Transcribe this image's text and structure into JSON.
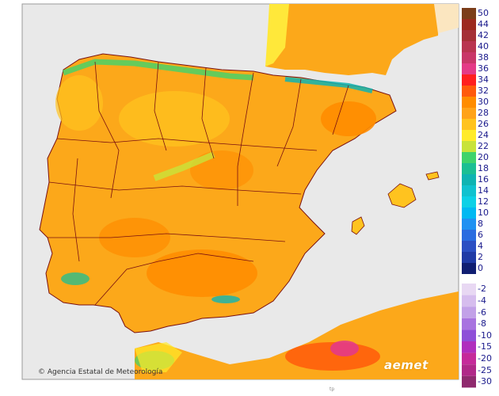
{
  "map": {
    "credit": "Agencia Estatal de Meteorología",
    "logo": "aemet",
    "bottom_mark": "tp",
    "colors": {
      "sea": "#e9e9e9",
      "base": "#fca81a",
      "border": "#7a1010"
    }
  },
  "legend": {
    "positive": [
      {
        "label": "50",
        "color": "#7b3d1a"
      },
      {
        "label": "44",
        "color": "#9c2a1e"
      },
      {
        "label": "42",
        "color": "#a53037"
      },
      {
        "label": "40",
        "color": "#b93550"
      },
      {
        "label": "38",
        "color": "#c93768"
      },
      {
        "label": "36",
        "color": "#e43a87"
      },
      {
        "label": "34",
        "color": "#ff1f1f"
      },
      {
        "label": "32",
        "color": "#ff5a0c"
      },
      {
        "label": "30",
        "color": "#ff8c00"
      },
      {
        "label": "28",
        "color": "#ffa31a"
      },
      {
        "label": "26",
        "color": "#ffc31f"
      },
      {
        "label": "24",
        "color": "#ffeb2b"
      },
      {
        "label": "22",
        "color": "#c8e33a"
      },
      {
        "label": "20",
        "color": "#3fd36b"
      },
      {
        "label": "18",
        "color": "#1bbf93"
      },
      {
        "label": "16",
        "color": "#0fb4b2"
      },
      {
        "label": "14",
        "color": "#10c2cf"
      },
      {
        "label": "12",
        "color": "#0cd1e6"
      },
      {
        "label": "10",
        "color": "#00b9f2"
      },
      {
        "label": "8",
        "color": "#1f91f2"
      },
      {
        "label": "6",
        "color": "#2a6ce0"
      },
      {
        "label": "4",
        "color": "#2b4fc3"
      },
      {
        "label": "2",
        "color": "#1f3aa6"
      },
      {
        "label": "0",
        "color": "#101e72"
      }
    ],
    "negative": [
      {
        "label": "-2",
        "color": "#e8d8f3"
      },
      {
        "label": "-4",
        "color": "#d6bdee"
      },
      {
        "label": "-6",
        "color": "#c2a1e8"
      },
      {
        "label": "-8",
        "color": "#a873e0"
      },
      {
        "label": "-10",
        "color": "#8e4fd8"
      },
      {
        "label": "-15",
        "color": "#b02fbe"
      },
      {
        "label": "-20",
        "color": "#c52a9a"
      },
      {
        "label": "-25",
        "color": "#b02888"
      },
      {
        "label": "-30",
        "color": "#8f2a6e"
      }
    ]
  }
}
